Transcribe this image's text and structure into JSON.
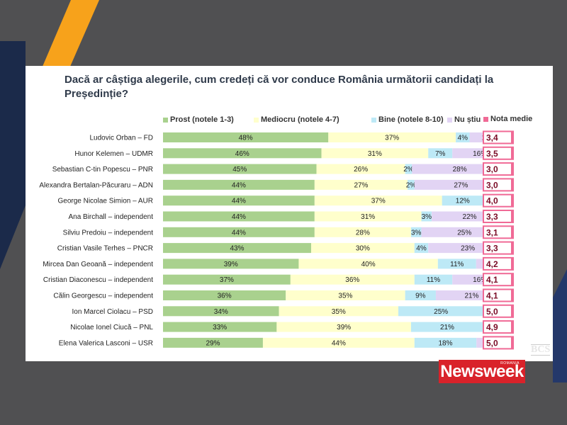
{
  "chart_data": {
    "type": "bar",
    "stacked": true,
    "orientation": "horizontal",
    "title": "Dacă ar câștiga alegerile, cum credeți că vor conduce România următorii candidați la Președinție?",
    "categories": [
      "Ludovic Orban – FD",
      "Hunor Kelemen – UDMR",
      "Sebastian C-tin Popescu – PNR",
      "Alexandra Bertalan-Păcuraru – ADN",
      "George Nicolae Simion – AUR",
      "Ana Birchall – independent",
      "Silviu Predoiu – independent",
      "Cristian Vasile Terhes – PNCR",
      "Mircea Dan Geoană – independent",
      "Cristian Diaconescu – independent",
      "Călin Georgescu – independent",
      "Ion Marcel Ciolacu – PSD",
      "Nicolae Ionel Ciucă – PNL",
      "Elena Valerica Lasconi – USR"
    ],
    "series": [
      {
        "name": "Prost (notele 1-3)",
        "color": "#a9d18e",
        "values": [
          48,
          46,
          45,
          44,
          44,
          44,
          44,
          43,
          39,
          37,
          36,
          34,
          33,
          29
        ]
      },
      {
        "name": "Mediocru (notele 4-7)",
        "color": "#ffffcc",
        "values": [
          37,
          31,
          26,
          27,
          37,
          31,
          28,
          30,
          40,
          36,
          35,
          35,
          39,
          44
        ]
      },
      {
        "name": "Bine (notele 8-10)",
        "color": "#bde9f6",
        "values": [
          4,
          7,
          2,
          2,
          12,
          3,
          3,
          4,
          11,
          11,
          9,
          25,
          21,
          18
        ]
      },
      {
        "name": "Nu știu",
        "color": "#e2d4f4",
        "values": [
          11,
          16,
          28,
          27,
          7,
          22,
          25,
          23,
          9,
          16,
          21,
          7,
          7,
          9
        ]
      }
    ],
    "nota_medie": {
      "name": "Nota medie",
      "color": "#f06a96",
      "values": [
        "3,4",
        "3,5",
        "3,0",
        "3,0",
        "4,0",
        "3,3",
        "3,1",
        "3,3",
        "4,2",
        "4,1",
        "4,1",
        "5,0",
        "4,9",
        "5,0"
      ]
    },
    "value_suffix": "%"
  },
  "branding": {
    "logo_text": "Newsweek",
    "logo_sub": "ROMANIA",
    "source_mark": "BCS"
  }
}
